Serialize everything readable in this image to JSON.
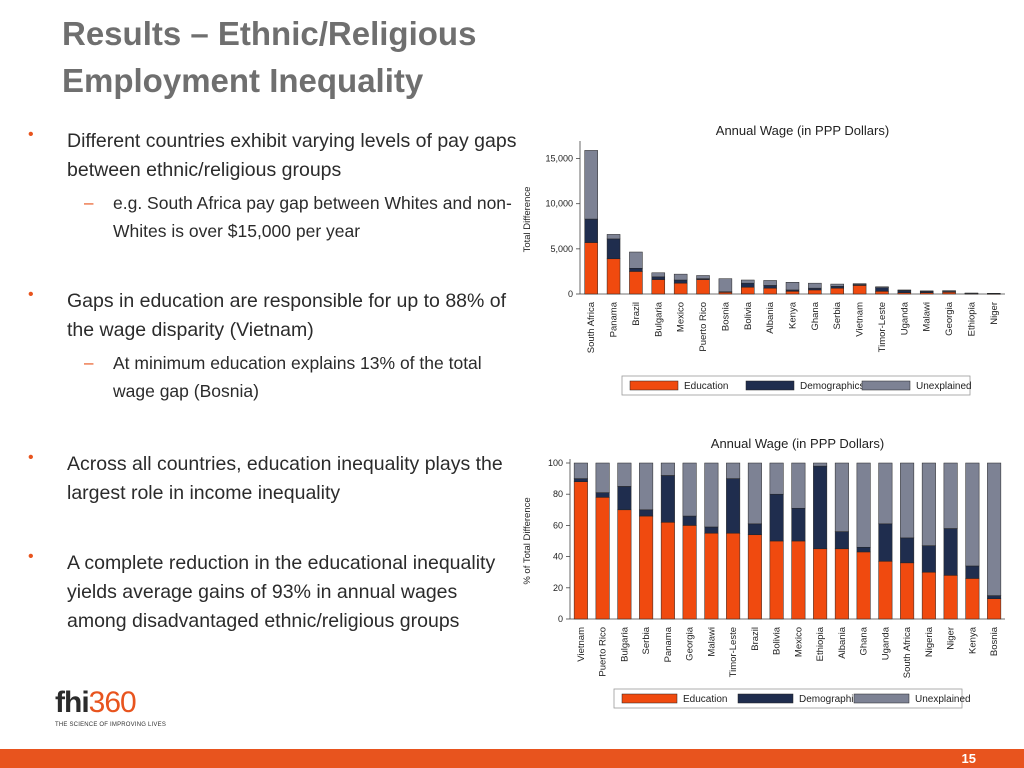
{
  "slide": {
    "title_line1": "Results – Ethnic/Religious",
    "title_line2": "Employment Inequality",
    "page_number": "15"
  },
  "bullets": [
    {
      "text": "Different countries exhibit varying levels of pay gaps between ethnic/religious groups",
      "sub": [
        "e.g. South Africa pay gap between Whites and non-Whites is over $15,000 per year"
      ]
    },
    {
      "text": "Gaps in education are responsible for up to 88% of the wage disparity (Vietnam)",
      "sub": [
        "At minimum education explains 13% of the total wage gap (Bosnia)"
      ]
    },
    {
      "text": "Across all countries, education inequality plays the largest role in income inequality",
      "sub": []
    },
    {
      "text": "A complete reduction in the educational inequality yields average gains of 93% in annual wages among disadvantaged ethnic/religious groups",
      "sub": []
    }
  ],
  "logo": {
    "text_main": "fhi",
    "text_num": "360",
    "tagline": "THE SCIENCE OF IMPROVING LIVES"
  },
  "colors": {
    "accent": "#e8541e",
    "education": "#f04a0f",
    "demographics": "#1f2d4e",
    "unexplained": "#7d8294",
    "title": "#6f6f6f"
  },
  "chart_data": [
    {
      "type": "bar",
      "stacked": true,
      "title": "Annual Wage (in PPP Dollars)",
      "ylabel": "Total Difference",
      "ylim": [
        0,
        16500
      ],
      "yticks": [
        0,
        5000,
        10000,
        15000
      ],
      "ytick_labels": [
        "0",
        "5,000",
        "10,000",
        "15,000"
      ],
      "legend_position": "bottom",
      "categories": [
        "South Africa",
        "Panama",
        "Brazil",
        "Bulgaria",
        "Mexico",
        "Puerto Rico",
        "Bosnia",
        "Bolivia",
        "Albania",
        "Kenya",
        "Ghana",
        "Serbia",
        "Vietnam",
        "Timor-Leste",
        "Uganda",
        "Malawi",
        "Georgia",
        "Ethiopia",
        "Niger"
      ],
      "series": [
        {
          "name": "Education",
          "values": [
            5700,
            3900,
            2500,
            1600,
            1200,
            1600,
            200,
            750,
            650,
            300,
            450,
            650,
            950,
            300,
            150,
            150,
            200,
            50,
            30
          ]
        },
        {
          "name": "Demographics",
          "values": [
            2600,
            2200,
            350,
            300,
            350,
            100,
            50,
            450,
            300,
            150,
            200,
            200,
            100,
            400,
            250,
            150,
            80,
            30,
            50
          ]
        },
        {
          "name": "Unexplained",
          "values": [
            7600,
            500,
            1800,
            450,
            650,
            350,
            1450,
            350,
            550,
            850,
            550,
            250,
            100,
            100,
            50,
            50,
            100,
            30,
            0
          ]
        }
      ]
    },
    {
      "type": "bar",
      "stacked": true,
      "title": "Annual Wage (in PPP Dollars)",
      "ylabel": "% of Total Difference",
      "ylim": [
        0,
        100
      ],
      "yticks": [
        0,
        20,
        40,
        60,
        80,
        100
      ],
      "ytick_labels": [
        "0",
        "20",
        "40",
        "60",
        "80",
        "100"
      ],
      "legend_position": "bottom",
      "categories": [
        "Vietnam",
        "Puerto Rico",
        "Bulgaria",
        "Serbia",
        "Panama",
        "Georgia",
        "Malawi",
        "Timor-Leste",
        "Brazil",
        "Bolivia",
        "Mexico",
        "Ethiopia",
        "Albania",
        "Ghana",
        "Uganda",
        "South Africa",
        "Nigeria",
        "Niger",
        "Kenya",
        "Bosnia"
      ],
      "series": [
        {
          "name": "Education",
          "values": [
            88,
            78,
            70,
            66,
            62,
            60,
            55,
            55,
            54,
            50,
            50,
            45,
            45,
            43,
            37,
            36,
            30,
            28,
            26,
            13
          ]
        },
        {
          "name": "Demographics",
          "values": [
            2,
            3,
            15,
            4,
            30,
            6,
            4,
            35,
            7,
            30,
            21,
            53,
            11,
            3,
            24,
            16,
            17,
            30,
            8,
            2
          ]
        },
        {
          "name": "Unexplained",
          "values": [
            10,
            19,
            15,
            30,
            8,
            34,
            41,
            10,
            39,
            20,
            29,
            2,
            44,
            54,
            39,
            48,
            53,
            42,
            66,
            85
          ]
        }
      ]
    }
  ]
}
